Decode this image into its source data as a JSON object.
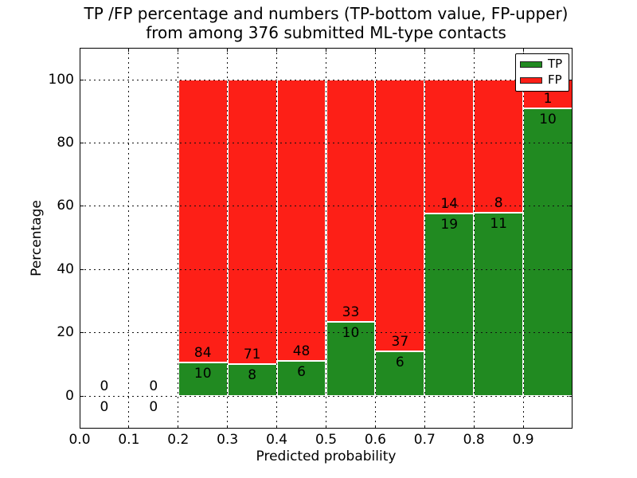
{
  "header": {
    "title_line1": "TP /FP percentage and numbers (TP-bottom value, FP-upper)",
    "title_line2": "from among 376 submitted ML-type contacts"
  },
  "chart_data": {
    "type": "bar",
    "stacked": true,
    "title": "TP /FP percentage and numbers (TP-bottom value, FP-upper) from among 376 submitted ML-type contacts",
    "xlabel": "Predicted probability",
    "ylabel": "Percentage",
    "total_submitted": 376,
    "xlim": [
      0.0,
      1.0
    ],
    "ylim": [
      -10.3,
      110.1
    ],
    "grid": true,
    "x_ticks": [
      "0.0",
      "0.1",
      "0.2",
      "0.3",
      "0.4",
      "0.5",
      "0.6",
      "0.7",
      "0.8",
      "0.9"
    ],
    "y_ticks": [
      0,
      20,
      40,
      60,
      80,
      100
    ],
    "legend": [
      {
        "name": "TP",
        "color": "#218a21"
      },
      {
        "name": "FP",
        "color": "#fd1f17"
      }
    ],
    "legend_position": "upper right",
    "bins": [
      {
        "range": [
          0.0,
          0.1
        ],
        "tp": 0,
        "fp": 0,
        "tp_pct": 0,
        "fp_pct": 0
      },
      {
        "range": [
          0.1,
          0.2
        ],
        "tp": 0,
        "fp": 0,
        "tp_pct": 0,
        "fp_pct": 0
      },
      {
        "range": [
          0.2,
          0.3
        ],
        "tp": 10,
        "fp": 84,
        "tp_pct": 10.6,
        "fp_pct": 89.4
      },
      {
        "range": [
          0.3,
          0.4
        ],
        "tp": 8,
        "fp": 71,
        "tp_pct": 10.1,
        "fp_pct": 89.9
      },
      {
        "range": [
          0.4,
          0.5
        ],
        "tp": 6,
        "fp": 48,
        "tp_pct": 11.1,
        "fp_pct": 88.9
      },
      {
        "range": [
          0.5,
          0.6
        ],
        "tp": 10,
        "fp": 33,
        "tp_pct": 23.3,
        "fp_pct": 76.7
      },
      {
        "range": [
          0.6,
          0.7
        ],
        "tp": 6,
        "fp": 37,
        "tp_pct": 14.0,
        "fp_pct": 86.0
      },
      {
        "range": [
          0.7,
          0.8
        ],
        "tp": 19,
        "fp": 14,
        "tp_pct": 57.6,
        "fp_pct": 42.4
      },
      {
        "range": [
          0.8,
          0.9
        ],
        "tp": 11,
        "fp": 8,
        "tp_pct": 57.9,
        "fp_pct": 42.1
      },
      {
        "range": [
          0.9,
          1.0
        ],
        "tp": 10,
        "fp": 1,
        "tp_pct": 90.9,
        "fp_pct": 9.1
      }
    ]
  }
}
